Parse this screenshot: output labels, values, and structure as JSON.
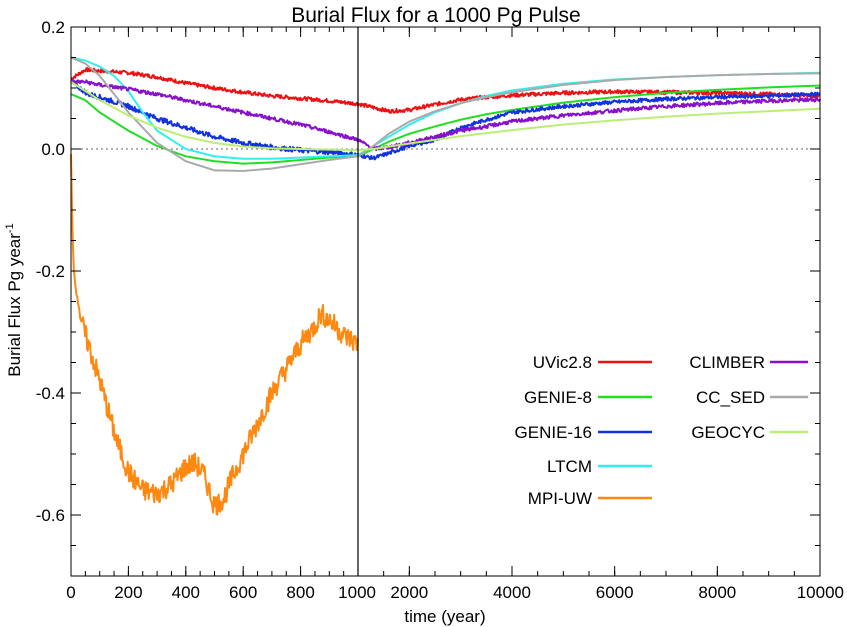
{
  "chart_data": {
    "type": "line",
    "title": "Burial Flux for a 1000 Pg Pulse",
    "xlabel": "time (year)",
    "ylabel": "Burial Flux Pg year",
    "ylabel_superscript": "-1",
    "x_axis_note": "split axis: linear 0-1000 on left panel, 1000-10000 on right panel",
    "xlim": [
      0,
      10000
    ],
    "ylim": [
      -0.7,
      0.2
    ],
    "x_ticks_left": [
      "0",
      "200",
      "400",
      "600",
      "800",
      "1000"
    ],
    "x_ticks_right": [
      "2000",
      "4000",
      "6000",
      "8000",
      "10000"
    ],
    "y_ticks": [
      "-0.6",
      "-0.4",
      "-0.2",
      "0.0",
      "0.2"
    ],
    "zero_reference_line": "dotted",
    "grid": false,
    "legend_position": "lower-right",
    "series": [
      {
        "name": "UVic2.8",
        "color": "#ee1111",
        "noisy": true,
        "x": [
          0,
          50,
          100,
          200,
          300,
          400,
          500,
          600,
          700,
          800,
          900,
          1000,
          1300,
          1600,
          2000,
          2500,
          3000,
          3500,
          4000,
          5000,
          6000,
          7000,
          8000,
          9000,
          10000
        ],
        "y": [
          0.115,
          0.13,
          0.128,
          0.125,
          0.118,
          0.108,
          0.1,
          0.093,
          0.087,
          0.083,
          0.079,
          0.074,
          0.068,
          0.062,
          0.064,
          0.073,
          0.081,
          0.085,
          0.088,
          0.092,
          0.094,
          0.093,
          0.092,
          0.09,
          0.087
        ]
      },
      {
        "name": "GENIE-8",
        "color": "#22dd22",
        "noisy": false,
        "x": [
          0,
          50,
          100,
          200,
          300,
          400,
          500,
          600,
          700,
          800,
          900,
          1000,
          1300,
          1600,
          2000,
          2500,
          3000,
          3500,
          4000,
          5000,
          6000,
          7000,
          8000,
          9000,
          10000
        ],
        "y": [
          0.09,
          0.08,
          0.06,
          0.03,
          0.005,
          -0.012,
          -0.02,
          -0.024,
          -0.022,
          -0.018,
          -0.014,
          -0.012,
          0.0,
          0.012,
          0.025,
          0.037,
          0.048,
          0.057,
          0.064,
          0.076,
          0.085,
          0.092,
          0.097,
          0.101,
          0.104
        ]
      },
      {
        "name": "GENIE-16",
        "color": "#1133dd",
        "noisy": true,
        "x": [
          0,
          30,
          60,
          100,
          200,
          300,
          400,
          500,
          600,
          700,
          800,
          900,
          1000,
          1300,
          1600,
          2000,
          2500,
          3000,
          3500,
          4000,
          5000,
          6000,
          7000,
          8000,
          9000,
          10000
        ],
        "y": [
          0.11,
          0.1,
          0.09,
          0.085,
          0.07,
          0.05,
          0.035,
          0.02,
          0.01,
          0.003,
          -0.002,
          -0.005,
          -0.01,
          -0.015,
          -0.007,
          0.005,
          0.015,
          0.035,
          0.048,
          0.06,
          0.07,
          0.077,
          0.082,
          0.085,
          0.087,
          0.09
        ]
      },
      {
        "name": "LTCM",
        "color": "#33eeee",
        "noisy": false,
        "x": [
          0,
          50,
          100,
          150,
          200,
          250,
          300,
          400,
          500,
          600,
          700,
          800,
          900,
          1000,
          1300,
          1600,
          2000,
          2500,
          3000,
          3500,
          4000,
          5000,
          6000,
          7000,
          8000,
          9000,
          10000
        ],
        "y": [
          0.15,
          0.145,
          0.135,
          0.12,
          0.095,
          0.06,
          0.03,
          0.0,
          -0.012,
          -0.016,
          -0.016,
          -0.014,
          -0.012,
          -0.01,
          0.005,
          0.02,
          0.04,
          0.06,
          0.075,
          0.087,
          0.096,
          0.107,
          0.114,
          0.118,
          0.121,
          0.123,
          0.125
        ]
      },
      {
        "name": "MPI-UW",
        "color": "#ff8811",
        "noisy": true,
        "x": [
          0,
          5,
          10,
          20,
          40,
          60,
          80,
          100,
          130,
          160,
          200,
          250,
          300,
          350,
          400,
          430,
          460,
          500,
          530,
          560,
          600,
          650,
          700,
          750,
          800,
          850,
          870,
          900,
          950,
          1000
        ],
        "y": [
          -0.01,
          -0.13,
          -0.2,
          -0.24,
          -0.29,
          -0.32,
          -0.35,
          -0.38,
          -0.43,
          -0.48,
          -0.53,
          -0.56,
          -0.565,
          -0.55,
          -0.52,
          -0.515,
          -0.53,
          -0.585,
          -0.575,
          -0.54,
          -0.5,
          -0.45,
          -0.4,
          -0.36,
          -0.32,
          -0.29,
          -0.27,
          -0.28,
          -0.305,
          -0.32
        ]
      },
      {
        "name": "CLIMBER",
        "color": "#8811cc",
        "noisy": true,
        "x": [
          0,
          50,
          100,
          200,
          300,
          400,
          500,
          600,
          700,
          800,
          900,
          1000,
          1300,
          1600,
          2000,
          2500,
          3000,
          3500,
          4000,
          5000,
          6000,
          7000,
          8000,
          9000,
          10000
        ],
        "y": [
          0.11,
          0.11,
          0.105,
          0.098,
          0.09,
          0.08,
          0.07,
          0.06,
          0.05,
          0.04,
          0.028,
          0.015,
          0.0,
          0.003,
          0.01,
          0.02,
          0.03,
          0.037,
          0.045,
          0.055,
          0.063,
          0.07,
          0.075,
          0.079,
          0.081
        ]
      },
      {
        "name": "CC_SED",
        "color": "#aaaaaa",
        "noisy": false,
        "x": [
          0,
          50,
          100,
          150,
          200,
          300,
          400,
          500,
          600,
          700,
          800,
          900,
          1000,
          1300,
          1600,
          2000,
          2500,
          3000,
          3500,
          4000,
          5000,
          6000,
          7000,
          8000,
          9000,
          10000
        ],
        "y": [
          0.15,
          0.14,
          0.12,
          0.09,
          0.06,
          0.01,
          -0.02,
          -0.035,
          -0.036,
          -0.032,
          -0.025,
          -0.018,
          -0.012,
          0.005,
          0.025,
          0.045,
          0.062,
          0.075,
          0.085,
          0.093,
          0.105,
          0.113,
          0.118,
          0.121,
          0.123,
          0.124
        ]
      },
      {
        "name": "GEOCYC",
        "color": "#bbee77",
        "noisy": false,
        "x": [
          0,
          50,
          100,
          200,
          300,
          400,
          500,
          600,
          700,
          800,
          900,
          1000,
          1300,
          1600,
          2000,
          2500,
          3000,
          3500,
          4000,
          5000,
          6000,
          7000,
          8000,
          9000,
          10000
        ],
        "y": [
          0.11,
          0.095,
          0.08,
          0.055,
          0.035,
          0.02,
          0.01,
          0.004,
          0.001,
          0.0,
          -0.001,
          -0.002,
          0.0,
          0.004,
          0.009,
          0.015,
          0.021,
          0.026,
          0.031,
          0.04,
          0.047,
          0.053,
          0.058,
          0.062,
          0.066
        ]
      }
    ]
  }
}
